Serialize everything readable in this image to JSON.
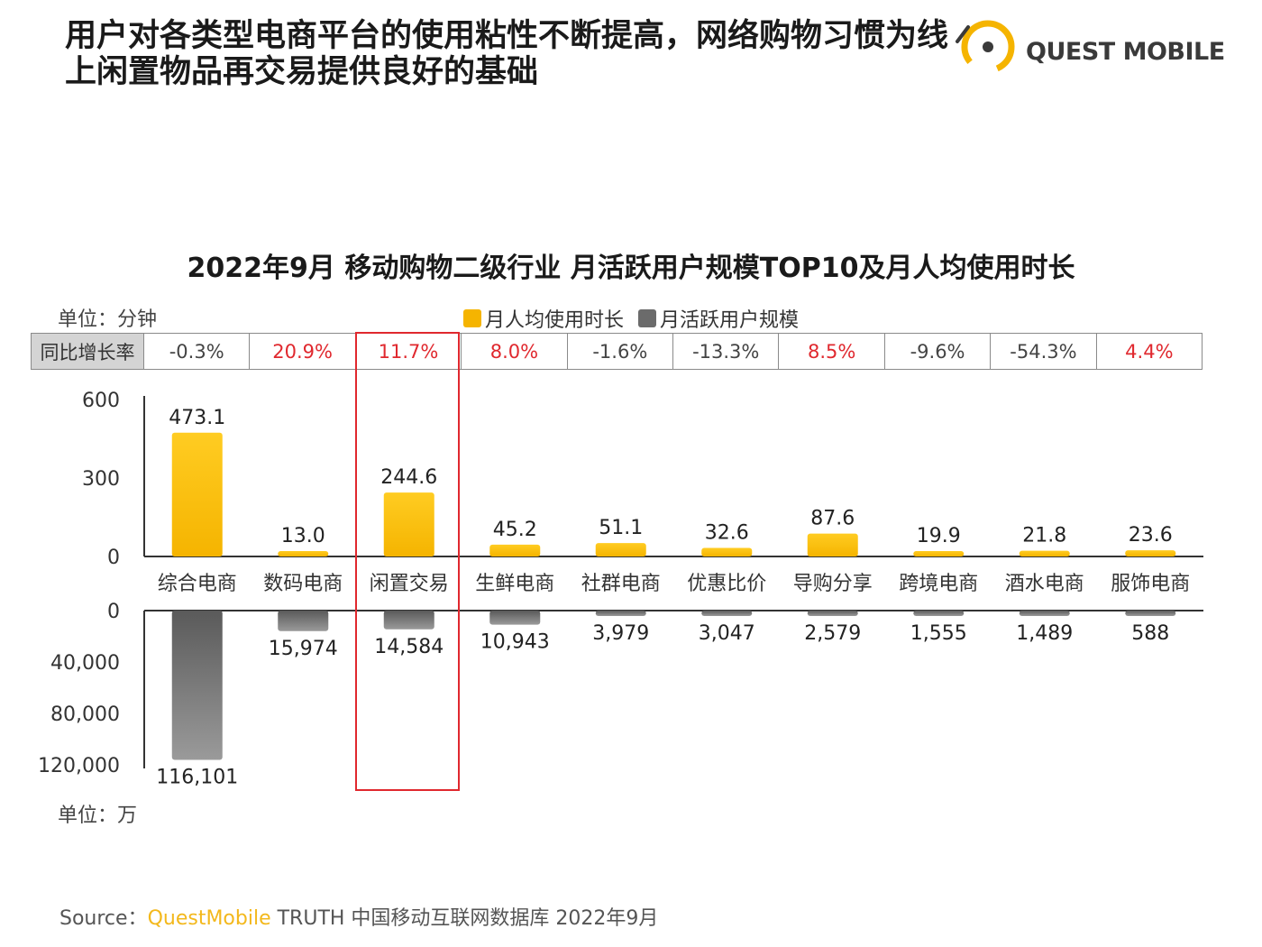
{
  "headline": "用户对各类型电商平台的使用粘性不断提高，网络购物习惯为线上闲置物品再交易提供良好的基础",
  "brand_name": "QUEST MOBILE",
  "colors": {
    "accent": "#f5b400",
    "accent_light": "#ffcc33",
    "gray": "#6b6b6b",
    "highlight": "#e0282e",
    "up": "#e0282e"
  },
  "unit_top": "单位：分钟",
  "unit_bottom": "单位：万",
  "yoy_header": "同比增长率",
  "chart_data": {
    "type": "bar",
    "title": "2022年9月 移动购物二级行业 月活跃用户规模TOP10及月人均使用时长",
    "categories": [
      "综合电商",
      "数码电商",
      "闲置交易",
      "生鲜电商",
      "社群电商",
      "优惠比价",
      "导购分享",
      "跨境电商",
      "酒水电商",
      "服饰电商"
    ],
    "series": [
      {
        "name": "月人均使用时长",
        "values": [
          473.1,
          13.0,
          244.6,
          45.2,
          51.1,
          32.6,
          87.6,
          19.9,
          21.8,
          23.6
        ],
        "labels": [
          "473.1",
          "13.0",
          "244.6",
          "45.2",
          "51.1",
          "32.6",
          "87.6",
          "19.9",
          "21.8",
          "23.6"
        ]
      },
      {
        "name": "月活跃用户规模",
        "values": [
          116101,
          15974,
          14584,
          10943,
          3979,
          3047,
          2579,
          1555,
          1489,
          588
        ],
        "labels": [
          "116,101",
          "15,974",
          "14,584",
          "10,943",
          "3,979",
          "3,047",
          "2,579",
          "1,555",
          "1,489",
          "588"
        ]
      }
    ],
    "yoy": [
      "-0.3%",
      "20.9%",
      "11.7%",
      "8.0%",
      "-1.6%",
      "-13.3%",
      "8.5%",
      "-9.6%",
      "-54.3%",
      "4.4%"
    ],
    "yoy_direction": [
      "down",
      "up",
      "up",
      "up",
      "down",
      "down",
      "up",
      "down",
      "down",
      "up"
    ],
    "upper_ylim": [
      0,
      600
    ],
    "upper_ticks": [
      "600",
      "300",
      "0"
    ],
    "lower_ylim": [
      0,
      120000
    ],
    "lower_ticks": [
      "0",
      "40,000",
      "80,000",
      "120,000"
    ],
    "highlighted_category": "闲置交易",
    "legend_position": "top"
  },
  "source": {
    "prefix": "Source：",
    "brand": "QuestMobile",
    "rest": " TRUTH 中国移动互联网数据库 2022年9月"
  }
}
